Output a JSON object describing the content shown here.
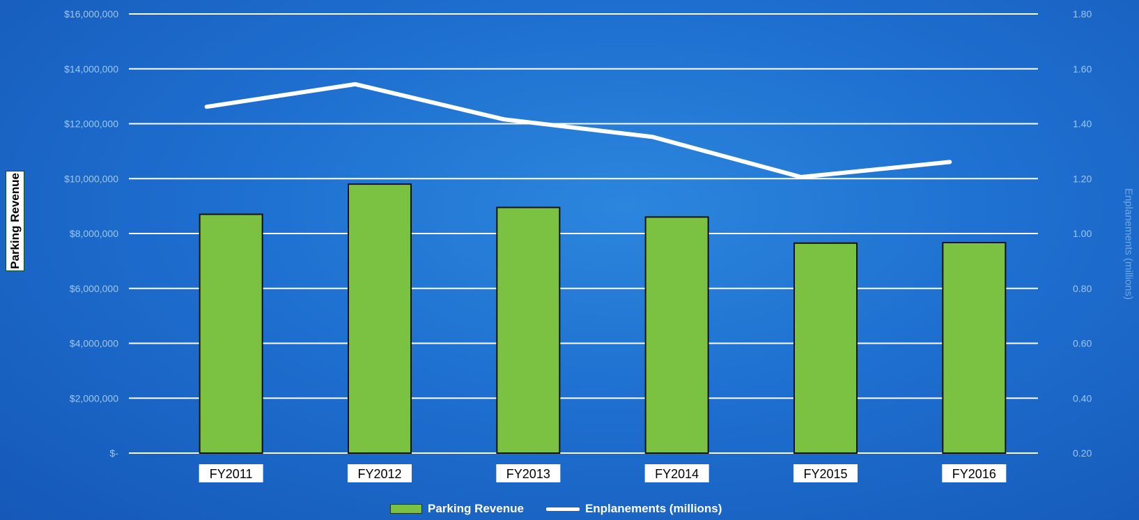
{
  "chart_data": {
    "type": "bar",
    "categories": [
      "FY2011",
      "FY2012",
      "FY2013",
      "FY2014",
      "FY2015",
      "FY2016"
    ],
    "series": [
      {
        "name": "Parking Revenue",
        "type": "bar",
        "axis": "left",
        "values": [
          8700000,
          9800000,
          8950000,
          8600000,
          7650000,
          7670000
        ]
      },
      {
        "name": "Enplanements (millions)",
        "type": "line",
        "axis": "right",
        "values": [
          1.58,
          1.67,
          1.53,
          1.46,
          1.3,
          1.36
        ]
      }
    ],
    "ylabel": "Parking Revenue",
    "y2label": "Enplanements (millions)",
    "ylim": [
      0,
      16000000
    ],
    "y2lim": [
      0.2,
      1.95
    ],
    "yticks": [
      "$-",
      "$2,000,000",
      "$4,000,000",
      "$6,000,000",
      "$8,000,000",
      "$10,000,000",
      "$12,000,000",
      "$14,000,000",
      "$16,000,000"
    ],
    "y2ticks": [
      "0.20",
      "0.40",
      "0.60",
      "0.80",
      "1.00",
      "1.20",
      "1.40",
      "1.60",
      "1.80"
    ],
    "grid": true,
    "legend": "bottom",
    "colors": {
      "bar": "#7cc242",
      "line": "#ffffff",
      "background": "#1e6fd0"
    }
  }
}
